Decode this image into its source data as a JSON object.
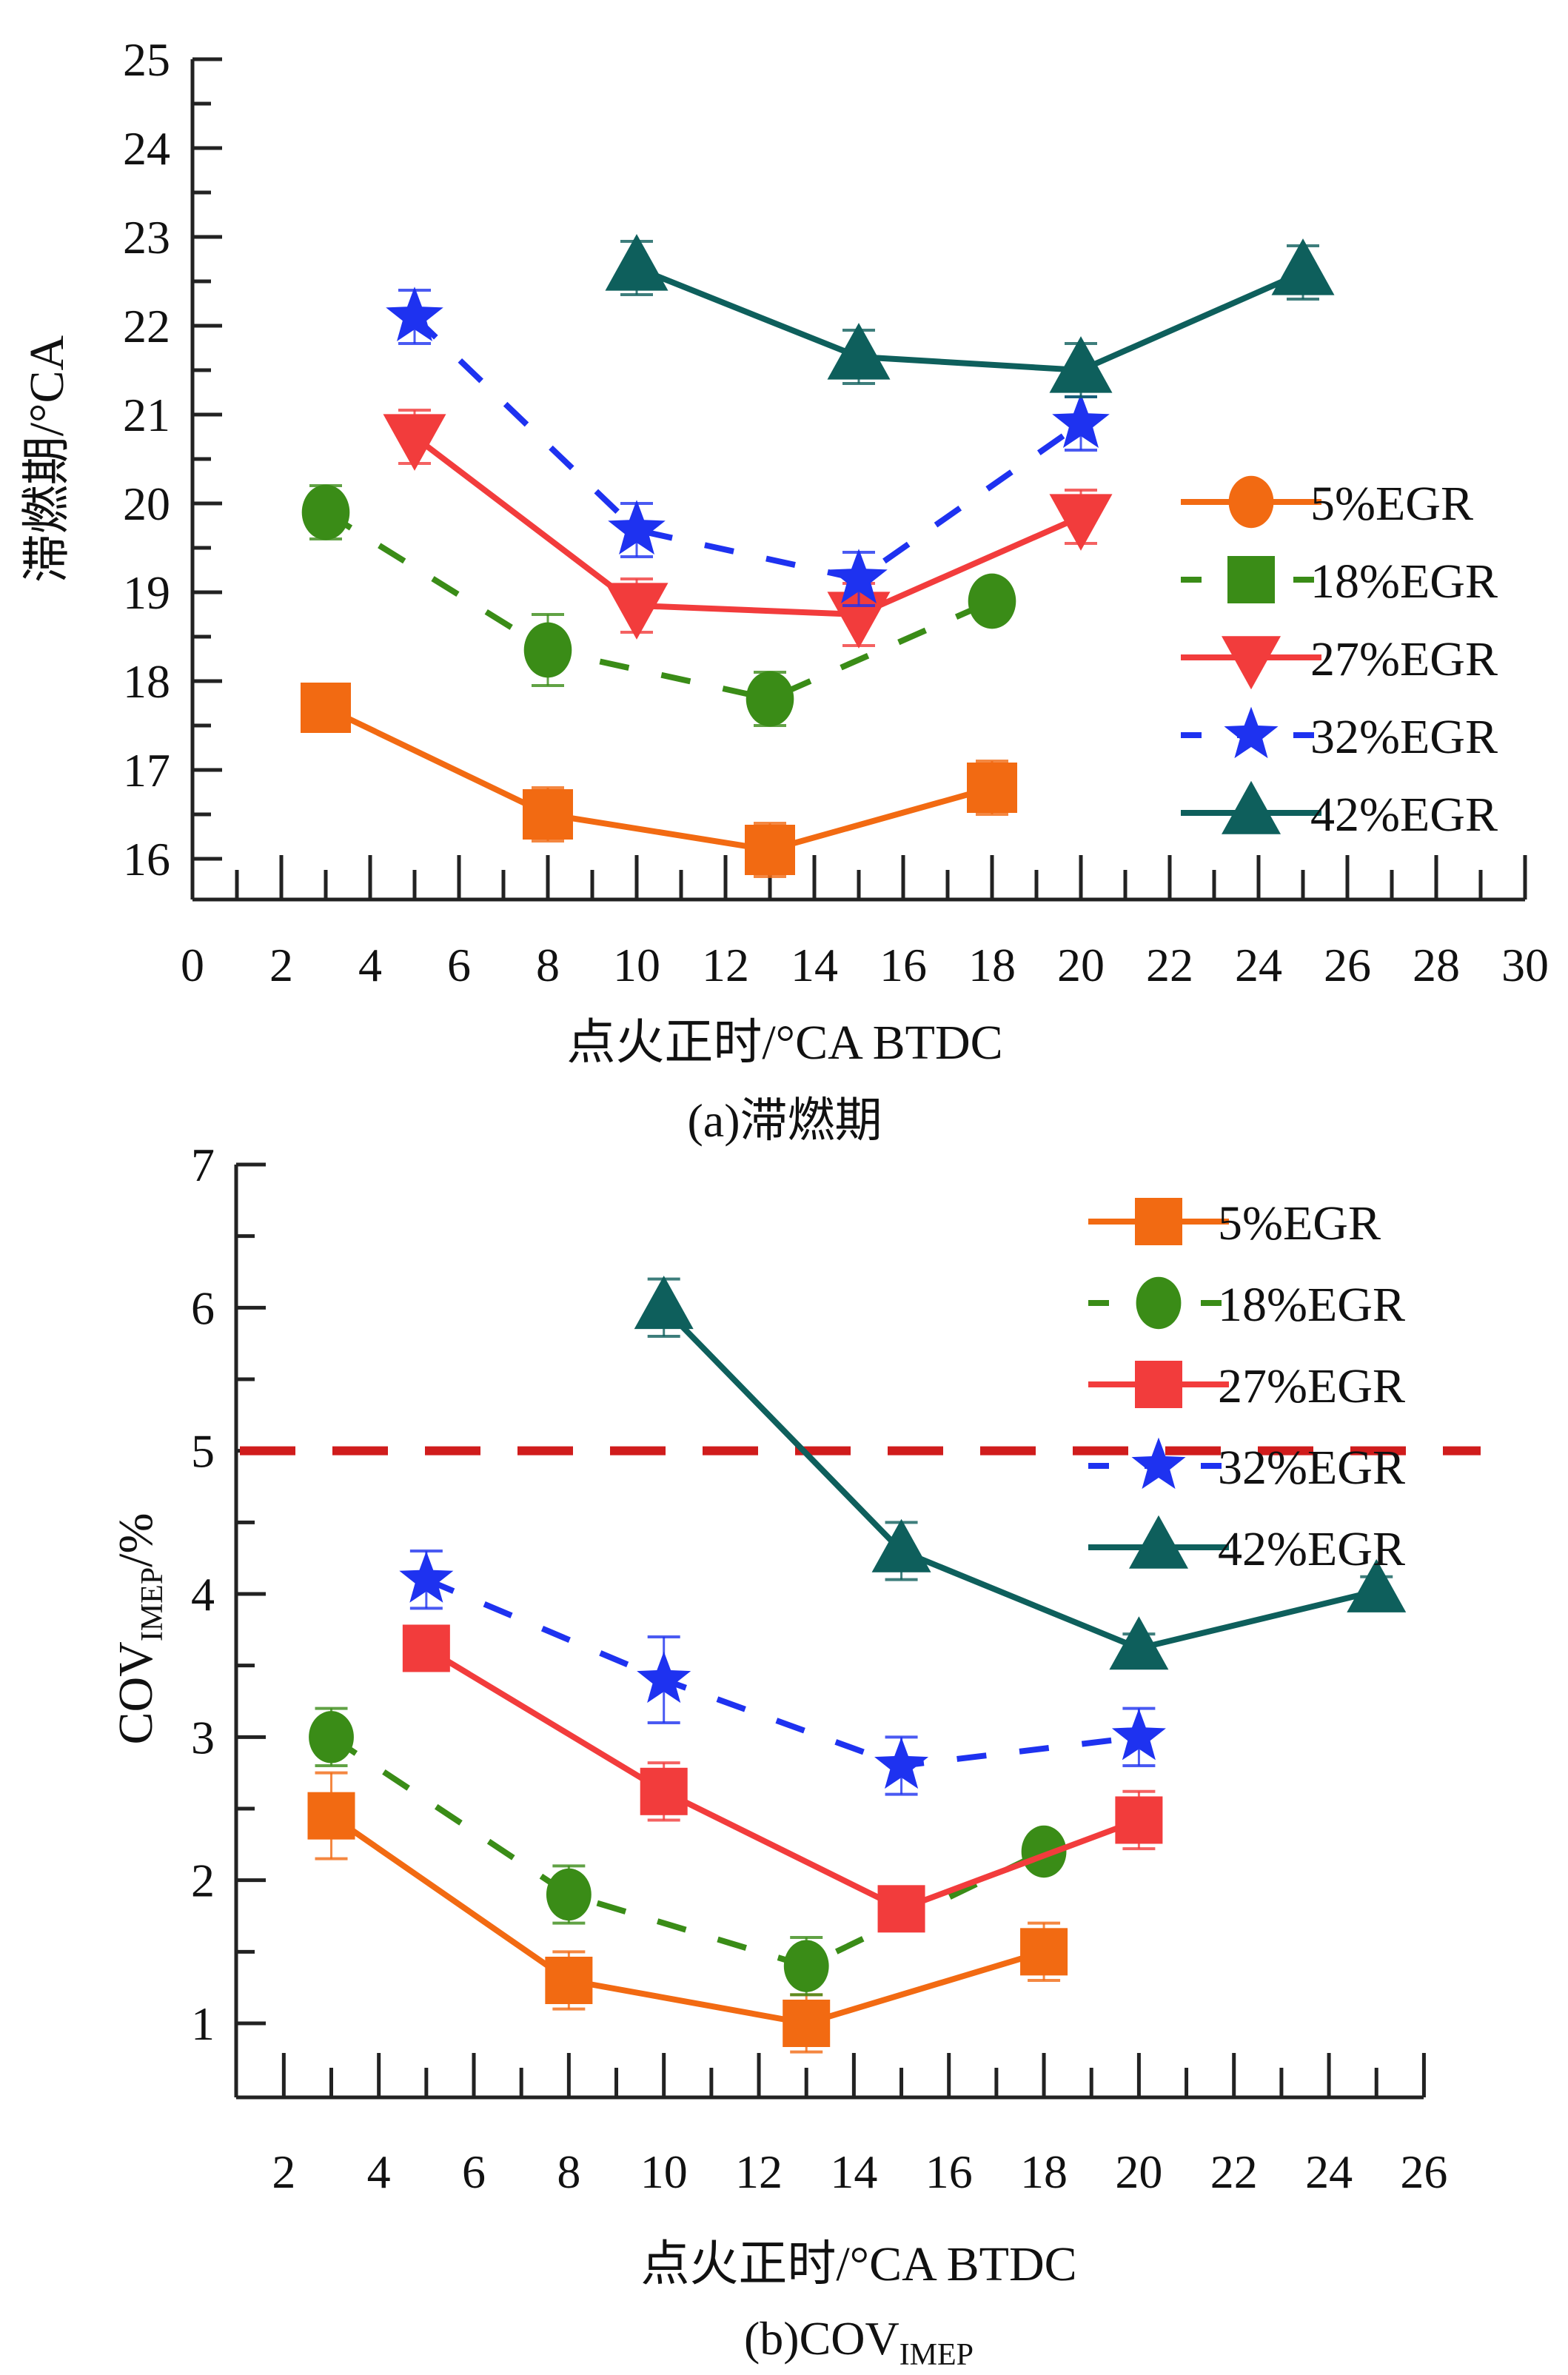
{
  "chart_data": [
    {
      "type": "line",
      "id": "a",
      "caption": "(a)滞燃期",
      "xlabel": "点火正时/°CA BTDC",
      "ylabel": "滞燃期/°CA",
      "xlim": [
        0,
        30
      ],
      "ylim": [
        15.5,
        25
      ],
      "xticks": [
        0,
        2,
        4,
        6,
        8,
        10,
        12,
        14,
        16,
        18,
        20,
        22,
        24,
        26,
        28,
        30
      ],
      "yticks": [
        16,
        17,
        18,
        19,
        20,
        21,
        22,
        23,
        24,
        25
      ],
      "grid": false,
      "legend_position": "right",
      "legend": [
        {
          "label": "5%EGR",
          "marker": "circle",
          "line": "solid",
          "color": "#f26a12"
        },
        {
          "label": "18%EGR",
          "marker": "square",
          "line": "dashed",
          "color": "#3a8c17"
        },
        {
          "label": "27%EGR",
          "marker": "triangle-down",
          "line": "solid",
          "color": "#f23c3c"
        },
        {
          "label": "32%EGR",
          "marker": "star",
          "line": "dashed",
          "color": "#1e32f0"
        },
        {
          "label": "42%EGR",
          "marker": "triangle-up",
          "line": "solid",
          "color": "#0e5f5c"
        }
      ],
      "series": [
        {
          "name": "5%EGR",
          "marker": "square",
          "line": "solid",
          "color": "#f26a12",
          "x": [
            3,
            8,
            13,
            18
          ],
          "y": [
            17.7,
            16.5,
            16.1,
            16.8
          ],
          "err": [
            0.25,
            0.3,
            0.3,
            0.3
          ]
        },
        {
          "name": "18%EGR",
          "marker": "circle",
          "line": "dashed",
          "color": "#3a8c17",
          "x": [
            3,
            8,
            13,
            18
          ],
          "y": [
            19.9,
            18.35,
            17.8,
            18.9
          ],
          "err": [
            0.3,
            0.4,
            0.3,
            0.15
          ]
        },
        {
          "name": "27%EGR",
          "marker": "triangle-down",
          "line": "solid",
          "color": "#f23c3c",
          "x": [
            5,
            10,
            15,
            20
          ],
          "y": [
            20.75,
            18.85,
            18.75,
            19.85
          ],
          "err": [
            0.3,
            0.3,
            0.35,
            0.3
          ]
        },
        {
          "name": "32%EGR",
          "marker": "star",
          "line": "dashed",
          "color": "#1e32f0",
          "x": [
            5,
            10,
            15,
            20
          ],
          "y": [
            22.1,
            19.7,
            19.15,
            20.9
          ],
          "err": [
            0.3,
            0.3,
            0.3,
            0.3
          ]
        },
        {
          "name": "42%EGR",
          "marker": "triangle-up",
          "line": "solid",
          "color": "#0e5f5c",
          "x": [
            10,
            15,
            20,
            25
          ],
          "y": [
            22.65,
            21.65,
            21.5,
            22.6
          ],
          "err": [
            0.3,
            0.3,
            0.3,
            0.3
          ]
        }
      ]
    },
    {
      "type": "line",
      "id": "b",
      "caption": "(b)COV",
      "caption_sub": "IMEP",
      "xlabel": "点火正时/°CA BTDC",
      "ylabel": "COV",
      "ylabel_sub": "IMEP",
      "ylabel_suffix": "/%",
      "xlim": [
        1,
        26
      ],
      "ylim": [
        0.5,
        7
      ],
      "xticks": [
        2,
        4,
        6,
        8,
        10,
        12,
        14,
        16,
        18,
        20,
        22,
        24,
        26
      ],
      "yticks": [
        1,
        2,
        3,
        4,
        5,
        6,
        7
      ],
      "grid": false,
      "legend_position": "top-right",
      "reference_line": {
        "y": 5,
        "color": "#d01c1c",
        "style": "dashed"
      },
      "legend": [
        {
          "label": "5%EGR",
          "marker": "square",
          "line": "solid",
          "color": "#f26a12"
        },
        {
          "label": "18%EGR",
          "marker": "circle",
          "line": "dashed",
          "color": "#3a8c17"
        },
        {
          "label": "27%EGR",
          "marker": "square",
          "line": "solid",
          "color": "#f23c3c"
        },
        {
          "label": "32%EGR",
          "marker": "star",
          "line": "dashed",
          "color": "#1e32f0"
        },
        {
          "label": "42%EGR",
          "marker": "triangle-up",
          "line": "solid",
          "color": "#0e5f5c"
        }
      ],
      "series": [
        {
          "name": "5%EGR",
          "marker": "square",
          "line": "solid",
          "color": "#f26a12",
          "x": [
            3,
            8,
            13,
            18
          ],
          "y": [
            2.45,
            1.3,
            1.0,
            1.5
          ],
          "err": [
            0.3,
            0.2,
            0.2,
            0.2
          ]
        },
        {
          "name": "18%EGR",
          "marker": "circle",
          "line": "dashed",
          "color": "#3a8c17",
          "x": [
            3,
            8,
            13,
            18
          ],
          "y": [
            3.0,
            1.9,
            1.4,
            2.2
          ],
          "err": [
            0.2,
            0.2,
            0.2,
            0.1
          ]
        },
        {
          "name": "27%EGR",
          "marker": "square",
          "line": "solid",
          "color": "#f23c3c",
          "x": [
            5,
            10,
            15,
            20
          ],
          "y": [
            3.62,
            2.62,
            1.8,
            2.42
          ],
          "err": [
            0.1,
            0.2,
            0.1,
            0.2
          ]
        },
        {
          "name": "32%EGR",
          "marker": "star",
          "line": "dashed",
          "color": "#1e32f0",
          "x": [
            5,
            10,
            15,
            20
          ],
          "y": [
            4.1,
            3.4,
            2.8,
            3.0
          ],
          "err": [
            0.2,
            0.3,
            0.2,
            0.2
          ]
        },
        {
          "name": "42%EGR",
          "marker": "triangle-up",
          "line": "solid",
          "color": "#0e5f5c",
          "x": [
            10,
            15,
            20,
            25
          ],
          "y": [
            6.0,
            4.3,
            3.62,
            4.02
          ],
          "err": [
            0.2,
            0.2,
            0.1,
            0.1
          ]
        }
      ]
    }
  ]
}
